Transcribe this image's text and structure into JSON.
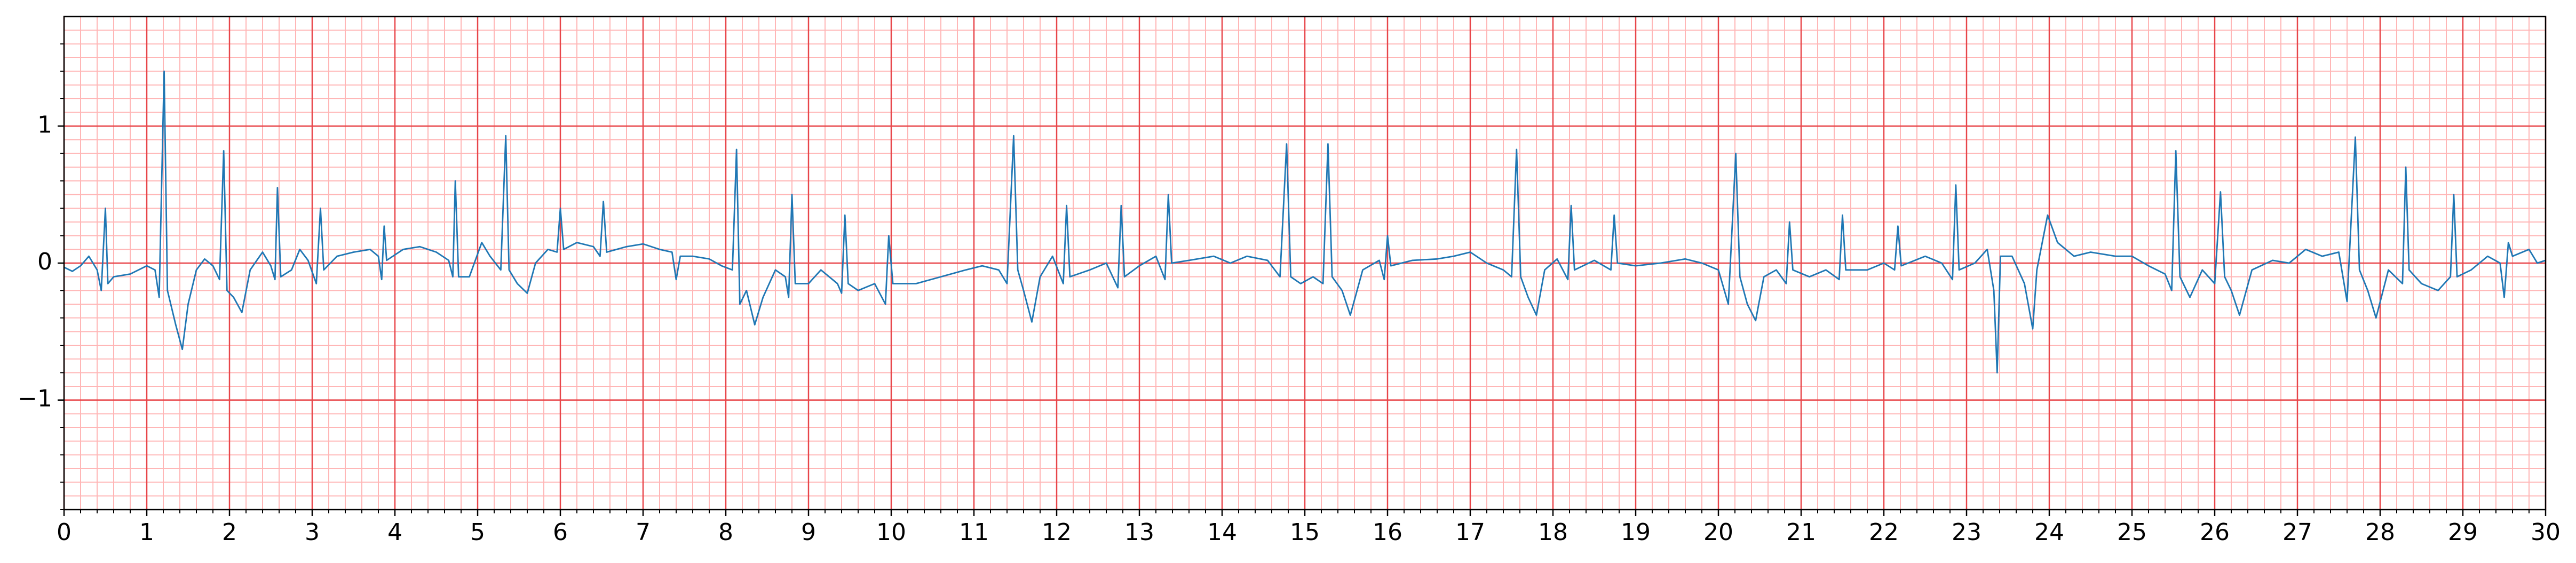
{
  "chart_data": {
    "type": "line",
    "x": [
      0,
      0.1,
      0.2,
      0.3,
      0.4,
      0.45,
      0.5,
      0.53,
      0.6,
      0.8,
      1.0,
      1.1,
      1.15,
      1.21,
      1.25,
      1.35,
      1.43,
      1.5,
      1.6,
      1.7,
      1.8,
      1.88,
      1.93,
      1.97,
      2.05,
      2.15,
      2.25,
      2.4,
      2.5,
      2.55,
      2.58,
      2.62,
      2.75,
      2.85,
      2.95,
      3.05,
      3.1,
      3.14,
      3.3,
      3.5,
      3.7,
      3.8,
      3.84,
      3.87,
      3.9,
      4.1,
      4.3,
      4.5,
      4.65,
      4.7,
      4.73,
      4.77,
      4.9,
      5.05,
      5.15,
      5.28,
      5.34,
      5.38,
      5.48,
      5.6,
      5.7,
      5.85,
      5.96,
      6.0,
      6.04,
      6.2,
      6.4,
      6.48,
      6.52,
      6.56,
      6.8,
      7.0,
      7.2,
      7.35,
      7.4,
      7.45,
      7.6,
      7.8,
      7.95,
      8.08,
      8.13,
      8.17,
      8.25,
      8.35,
      8.45,
      8.6,
      8.72,
      8.76,
      8.8,
      8.84,
      9.0,
      9.15,
      9.35,
      9.4,
      9.44,
      9.48,
      9.6,
      9.8,
      9.93,
      9.97,
      10.02,
      10.3,
      10.6,
      10.9,
      11.1,
      11.3,
      11.4,
      11.48,
      11.53,
      11.6,
      11.7,
      11.8,
      11.95,
      12.08,
      12.12,
      12.16,
      12.4,
      12.6,
      12.74,
      12.78,
      12.82,
      13.0,
      13.2,
      13.31,
      13.35,
      13.39,
      13.6,
      13.9,
      14.1,
      14.3,
      14.55,
      14.7,
      14.78,
      14.83,
      14.95,
      15.1,
      15.22,
      15.28,
      15.33,
      15.45,
      15.55,
      15.7,
      15.9,
      15.96,
      16.0,
      16.04,
      16.3,
      16.6,
      16.8,
      17.0,
      17.2,
      17.4,
      17.5,
      17.56,
      17.61,
      17.7,
      17.8,
      17.9,
      18.05,
      18.18,
      18.22,
      18.26,
      18.5,
      18.7,
      18.74,
      18.78,
      19.0,
      19.3,
      19.6,
      19.8,
      20.0,
      20.12,
      20.21,
      20.26,
      20.35,
      20.45,
      20.55,
      20.7,
      20.82,
      20.86,
      20.9,
      21.1,
      21.3,
      21.46,
      21.5,
      21.54,
      21.8,
      22.0,
      22.13,
      22.17,
      22.21,
      22.5,
      22.7,
      22.83,
      22.87,
      22.91,
      23.1,
      23.25,
      23.33,
      23.37,
      23.41,
      23.55,
      23.7,
      23.8,
      23.85,
      23.98,
      24.1,
      24.3,
      24.5,
      24.8,
      25.0,
      25.2,
      25.4,
      25.48,
      25.53,
      25.58,
      25.7,
      25.85,
      26.0,
      26.07,
      26.12,
      26.2,
      26.3,
      26.45,
      26.7,
      26.9,
      27.1,
      27.3,
      27.5,
      27.6,
      27.7,
      27.75,
      27.85,
      27.95,
      28.1,
      28.27,
      28.31,
      28.35,
      28.5,
      28.7,
      28.85,
      28.89,
      28.93,
      29.1,
      29.3,
      29.45,
      29.5,
      29.55,
      29.6,
      29.8,
      29.9,
      30.0
    ],
    "series": [
      {
        "color": "#1f77b4",
        "values": [
          -0.03,
          -0.06,
          -0.02,
          0.05,
          -0.05,
          -0.2,
          0.4,
          -0.15,
          -0.1,
          -0.08,
          -0.02,
          -0.05,
          -0.25,
          1.4,
          -0.2,
          -0.45,
          -0.63,
          -0.3,
          -0.05,
          0.03,
          -0.02,
          -0.12,
          0.82,
          -0.2,
          -0.25,
          -0.36,
          -0.05,
          0.08,
          -0.02,
          -0.12,
          0.55,
          -0.1,
          -0.05,
          0.1,
          0.02,
          -0.15,
          0.4,
          -0.05,
          0.05,
          0.08,
          0.1,
          0.05,
          -0.12,
          0.27,
          0.02,
          0.1,
          0.12,
          0.08,
          0.02,
          -0.1,
          0.6,
          -0.1,
          -0.1,
          0.15,
          0.05,
          -0.05,
          0.93,
          -0.05,
          -0.15,
          -0.22,
          0.0,
          0.1,
          0.08,
          0.4,
          0.1,
          0.15,
          0.12,
          0.05,
          0.45,
          0.08,
          0.12,
          0.14,
          0.1,
          0.08,
          -0.12,
          0.05,
          0.05,
          0.03,
          -0.02,
          -0.05,
          0.83,
          -0.3,
          -0.2,
          -0.45,
          -0.25,
          -0.05,
          -0.1,
          -0.25,
          0.5,
          -0.15,
          -0.15,
          -0.05,
          -0.15,
          -0.22,
          0.35,
          -0.15,
          -0.2,
          -0.15,
          -0.3,
          0.2,
          -0.15,
          -0.15,
          -0.1,
          -0.05,
          -0.02,
          -0.05,
          -0.15,
          0.93,
          -0.05,
          -0.2,
          -0.43,
          -0.1,
          0.05,
          -0.15,
          0.42,
          -0.1,
          -0.05,
          0.0,
          -0.18,
          0.42,
          -0.1,
          -0.02,
          0.05,
          -0.12,
          0.5,
          0.0,
          0.02,
          0.05,
          0.0,
          0.05,
          0.02,
          -0.1,
          0.87,
          -0.1,
          -0.15,
          -0.1,
          -0.15,
          0.87,
          -0.1,
          -0.2,
          -0.38,
          -0.05,
          0.02,
          -0.12,
          0.2,
          -0.02,
          0.02,
          0.03,
          0.05,
          0.08,
          0.0,
          -0.05,
          -0.1,
          0.83,
          -0.1,
          -0.25,
          -0.38,
          -0.05,
          0.03,
          -0.12,
          0.42,
          -0.05,
          0.02,
          -0.05,
          0.35,
          0.0,
          -0.02,
          0.0,
          0.03,
          0.0,
          -0.05,
          -0.3,
          0.8,
          -0.1,
          -0.3,
          -0.42,
          -0.1,
          -0.05,
          -0.15,
          0.3,
          -0.05,
          -0.1,
          -0.05,
          -0.12,
          0.35,
          -0.05,
          -0.05,
          0.0,
          -0.05,
          0.27,
          -0.02,
          0.05,
          0.0,
          -0.12,
          0.57,
          -0.05,
          0.0,
          0.1,
          -0.2,
          -0.8,
          0.05,
          0.05,
          -0.15,
          -0.48,
          -0.05,
          0.35,
          0.15,
          0.05,
          0.08,
          0.05,
          0.05,
          -0.02,
          -0.08,
          -0.2,
          0.82,
          -0.1,
          -0.25,
          -0.05,
          -0.15,
          0.52,
          -0.1,
          -0.2,
          -0.38,
          -0.05,
          0.02,
          0.0,
          0.1,
          0.05,
          0.08,
          -0.28,
          0.92,
          -0.05,
          -0.2,
          -0.4,
          -0.05,
          -0.15,
          0.7,
          -0.05,
          -0.15,
          -0.2,
          -0.1,
          0.5,
          -0.1,
          -0.05,
          0.05,
          0.0,
          -0.25,
          0.15,
          0.05,
          0.1,
          0.0,
          0.02
        ]
      }
    ],
    "xlim": [
      0,
      30
    ],
    "xticks": [
      0,
      1,
      2,
      3,
      4,
      5,
      6,
      7,
      8,
      9,
      10,
      11,
      12,
      13,
      14,
      15,
      16,
      17,
      18,
      19,
      20,
      21,
      22,
      23,
      24,
      25,
      26,
      27,
      28,
      29,
      30
    ],
    "ylim": [
      -1.8,
      1.8
    ],
    "yticks": [
      {
        "value": -1,
        "label": "−1"
      },
      0,
      1
    ],
    "grid": true,
    "grid_color": "#e8464a",
    "minor_grid_color": "#ffb6b6"
  }
}
